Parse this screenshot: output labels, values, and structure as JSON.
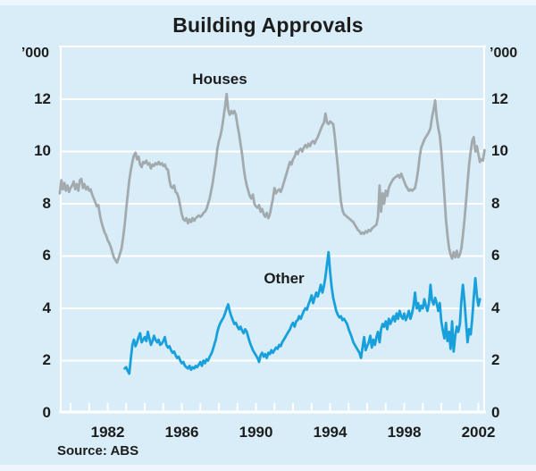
{
  "title": "Building Approvals",
  "source_note": "Source: ABS",
  "axes": {
    "unit_left": "’000",
    "unit_right": "’000"
  },
  "colors": {
    "background": "#d8edf7",
    "grid": "#ffffff",
    "text": "#1c1c1c",
    "houses": "#a3aaae",
    "other": "#18a0dc"
  },
  "chart_data": {
    "type": "line",
    "title": "Building Approvals",
    "ylabel": "'000",
    "xlabel": "",
    "grid": true,
    "legend_position": "inline-labels",
    "ylim": [
      0,
      14.05
    ],
    "y_ticks": [
      0,
      2,
      4,
      6,
      8,
      10,
      12
    ],
    "x_domain": [
      1979.42,
      2002.36
    ],
    "x_tick_years": [
      1980,
      1981,
      1982,
      1983,
      1984,
      1985,
      1986,
      1987,
      1988,
      1989,
      1990,
      1991,
      1992,
      1993,
      1994,
      1995,
      1996,
      1997,
      1998,
      1999,
      2000,
      2001,
      2002
    ],
    "x_label_years": [
      1982,
      1986,
      1990,
      1994,
      1998,
      2002
    ],
    "series": [
      {
        "name": "Houses",
        "color": "#a3aaae",
        "start_year": 1979.4167,
        "step_years": 0.08333,
        "values": [
          8.4,
          8.9,
          8.55,
          8.8,
          8.5,
          8.7,
          8.45,
          8.6,
          8.7,
          8.85,
          8.55,
          8.75,
          8.5,
          8.9,
          8.95,
          8.6,
          8.75,
          8.55,
          8.65,
          8.5,
          8.55,
          8.35,
          8.2,
          8.05,
          7.9,
          7.95,
          7.55,
          7.3,
          7.1,
          6.9,
          6.8,
          6.6,
          6.5,
          6.35,
          6.15,
          5.95,
          5.85,
          5.75,
          5.9,
          6.1,
          6.3,
          6.7,
          7.2,
          7.8,
          8.35,
          8.9,
          9.3,
          9.6,
          9.85,
          9.95,
          9.7,
          9.8,
          9.5,
          9.4,
          9.6,
          9.55,
          9.65,
          9.5,
          9.55,
          9.35,
          9.5,
          9.45,
          9.55,
          9.5,
          9.6,
          9.5,
          9.55,
          9.45,
          9.5,
          9.35,
          9.3,
          8.9,
          8.65,
          8.6,
          8.7,
          8.45,
          8.4,
          8.2,
          7.9,
          7.6,
          7.4,
          7.35,
          7.45,
          7.25,
          7.4,
          7.3,
          7.45,
          7.35,
          7.45,
          7.5,
          7.55,
          7.5,
          7.55,
          7.65,
          7.7,
          7.8,
          8.0,
          8.2,
          8.5,
          8.8,
          9.2,
          9.6,
          10.1,
          10.4,
          10.6,
          10.9,
          11.3,
          11.7,
          12.2,
          11.6,
          11.4,
          11.55,
          11.45,
          11.55,
          11.4,
          11.0,
          10.7,
          10.3,
          9.9,
          9.4,
          9.0,
          8.7,
          8.5,
          8.3,
          8.2,
          8.35,
          8.0,
          7.9,
          7.85,
          7.95,
          7.7,
          7.8,
          7.6,
          7.5,
          7.65,
          7.45,
          7.6,
          7.9,
          8.2,
          8.6,
          8.4,
          8.5,
          8.55,
          8.45,
          8.6,
          8.8,
          9.0,
          9.2,
          9.4,
          9.6,
          9.5,
          9.7,
          9.8,
          10.0,
          9.9,
          10.05,
          10.1,
          10.0,
          10.15,
          10.25,
          10.15,
          10.3,
          10.2,
          10.35,
          10.4,
          10.3,
          10.45,
          10.55,
          10.7,
          10.85,
          11.0,
          11.1,
          11.45,
          11.1,
          11.05,
          11.15,
          11.1,
          11.05,
          10.6,
          10.0,
          9.4,
          8.7,
          8.1,
          7.75,
          7.6,
          7.55,
          7.5,
          7.45,
          7.4,
          7.35,
          7.3,
          7.2,
          7.1,
          7.0,
          6.95,
          6.85,
          6.9,
          6.85,
          6.95,
          6.9,
          7.0,
          6.95,
          7.05,
          7.1,
          7.15,
          7.2,
          7.5,
          8.7,
          7.7,
          8.4,
          8.0,
          8.5,
          8.3,
          8.6,
          8.75,
          8.85,
          8.95,
          9.0,
          9.05,
          9.1,
          9.0,
          9.15,
          9.0,
          8.85,
          8.7,
          8.6,
          8.5,
          8.55,
          8.5,
          8.55,
          8.6,
          8.9,
          9.3,
          9.8,
          10.15,
          10.3,
          10.45,
          10.55,
          10.65,
          10.75,
          10.9,
          11.3,
          11.6,
          11.95,
          11.3,
          10.9,
          10.6,
          10.0,
          9.2,
          8.3,
          7.4,
          6.8,
          6.3,
          6.05,
          5.9,
          6.15,
          5.95,
          6.2,
          5.95,
          6.05,
          6.3,
          6.8,
          7.4,
          8.1,
          8.8,
          9.5,
          10.0,
          10.4,
          10.55,
          10.0,
          10.2,
          9.9,
          9.6,
          9.7,
          9.65,
          10.05
        ]
      },
      {
        "name": "Other",
        "color": "#18a0dc",
        "start_year": 1982.9167,
        "step_years": 0.08333,
        "values": [
          1.7,
          1.75,
          1.6,
          1.5,
          2.1,
          2.6,
          2.8,
          2.55,
          2.7,
          2.9,
          3.05,
          2.7,
          2.8,
          2.9,
          2.75,
          3.1,
          2.85,
          2.6,
          2.75,
          2.95,
          2.8,
          2.7,
          2.8,
          2.6,
          2.65,
          2.75,
          2.9,
          2.6,
          2.5,
          2.55,
          2.4,
          2.3,
          2.35,
          2.2,
          2.1,
          2.15,
          2.0,
          1.9,
          1.95,
          1.8,
          1.75,
          1.7,
          1.8,
          1.65,
          1.75,
          1.7,
          1.8,
          1.75,
          1.85,
          1.95,
          1.8,
          2.0,
          1.9,
          2.05,
          2.0,
          2.15,
          2.25,
          2.4,
          2.6,
          2.8,
          3.1,
          3.3,
          3.45,
          3.55,
          3.65,
          3.8,
          4.0,
          4.15,
          3.9,
          3.7,
          3.55,
          3.4,
          3.45,
          3.3,
          3.2,
          3.3,
          3.15,
          3.05,
          3.2,
          3.1,
          2.9,
          2.7,
          2.55,
          2.4,
          2.3,
          2.2,
          2.1,
          1.95,
          2.2,
          2.3,
          2.15,
          2.25,
          2.1,
          2.3,
          2.25,
          2.4,
          2.3,
          2.4,
          2.5,
          2.45,
          2.6,
          2.55,
          2.7,
          2.8,
          2.9,
          3.0,
          3.1,
          3.2,
          3.35,
          3.45,
          3.3,
          3.5,
          3.55,
          3.7,
          3.6,
          3.75,
          3.9,
          4.0,
          3.95,
          4.15,
          4.3,
          4.5,
          4.2,
          4.4,
          4.6,
          4.45,
          4.65,
          4.9,
          4.6,
          4.85,
          5.2,
          5.7,
          6.15,
          5.4,
          4.8,
          4.4,
          4.15,
          3.9,
          3.75,
          3.65,
          3.7,
          3.55,
          3.6,
          3.5,
          3.4,
          3.2,
          3.05,
          2.9,
          2.7,
          2.6,
          2.5,
          2.4,
          2.3,
          2.1,
          2.5,
          2.9,
          2.4,
          2.55,
          2.7,
          2.95,
          2.5,
          2.8,
          2.6,
          2.9,
          3.1,
          2.7,
          3.2,
          3.4,
          3.3,
          3.5,
          3.2,
          3.6,
          3.4,
          3.55,
          3.7,
          3.5,
          3.8,
          3.6,
          3.9,
          3.7,
          3.6,
          3.8,
          3.55,
          3.7,
          3.9,
          3.6,
          3.8,
          4.1,
          4.6,
          4.0,
          4.2,
          3.9,
          4.1,
          4.0,
          4.35,
          4.1,
          3.9,
          4.2,
          4.9,
          4.3,
          4.15,
          4.4,
          4.2,
          3.9,
          4.2,
          3.5,
          3.15,
          2.85,
          3.45,
          2.75,
          3.1,
          2.45,
          3.5,
          2.35,
          2.95,
          3.3,
          3.1,
          3.4,
          4.3,
          4.9,
          4.25,
          3.45,
          2.7,
          3.2,
          3.0,
          3.6,
          4.4,
          5.15,
          4.5,
          4.1,
          4.35
        ]
      }
    ]
  }
}
